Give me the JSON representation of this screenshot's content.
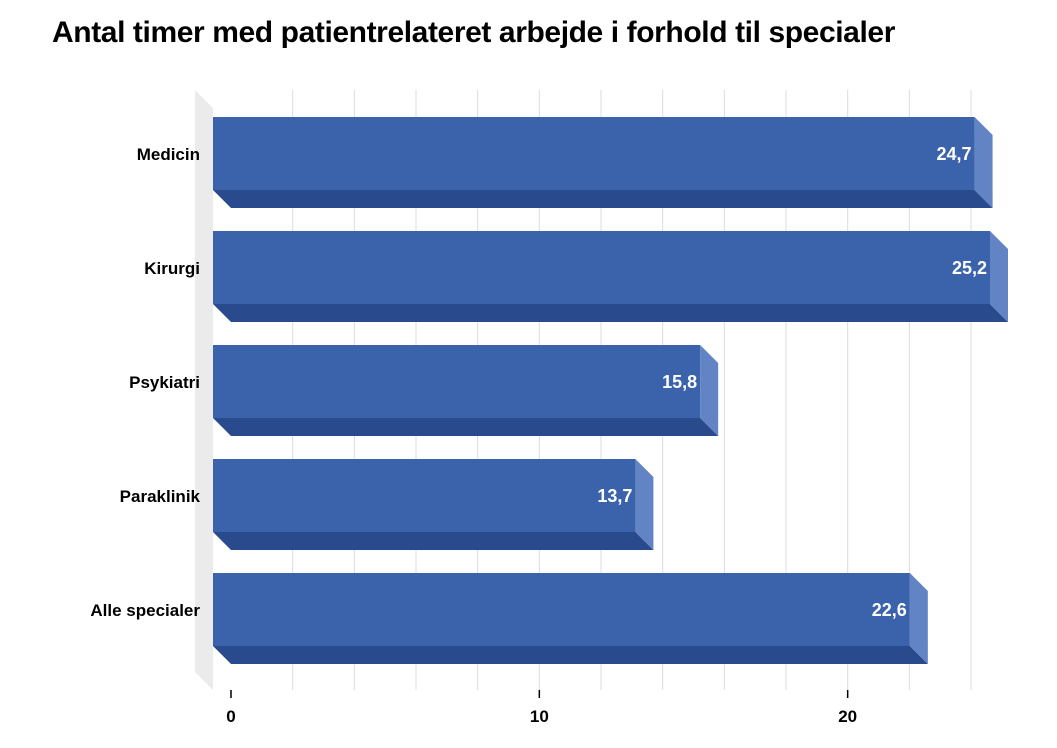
{
  "chart_data": {
    "type": "bar",
    "orientation": "horizontal",
    "title": "Antal timer med patientrelateret arbejde i forhold til specialer",
    "categories": [
      "Medicin",
      "Kirurgi",
      "Psykiatri",
      "Paraklinik",
      "Alle specialer"
    ],
    "values": [
      24.7,
      25.2,
      15.8,
      13.7,
      22.6
    ],
    "value_labels": [
      "24,7",
      "25,2",
      "15,8",
      "13,7",
      "22,6"
    ],
    "xlabel": "",
    "ylabel": "",
    "xlim": [
      0,
      25.2
    ],
    "ticks": [
      0,
      10,
      20
    ],
    "tick_labels": [
      "0",
      "10",
      "20"
    ],
    "grid": true,
    "legend": "none",
    "colors": {
      "bar_front": "#3A63AB",
      "bar_top": "#2A4A8E",
      "bar_side": "#6284C4",
      "wall": "#EBEBEB",
      "grid": "#DCDCDC"
    }
  }
}
